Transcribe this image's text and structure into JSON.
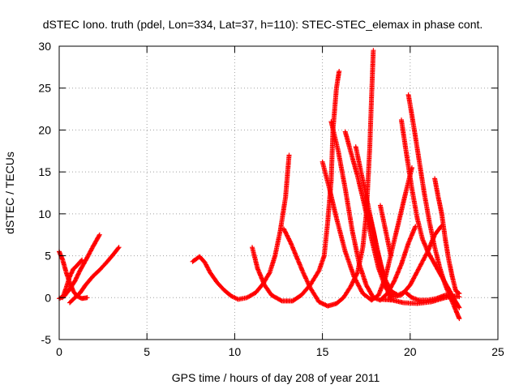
{
  "chart_data": {
    "type": "scatter",
    "title": "dSTEC Iono. truth (pdel, Lon=334, Lat=37, h=110): STEC-STEC_elemax in phase cont.",
    "xlabel": "GPS time / hours of day 208 of year 2011",
    "ylabel": "dSTEC  / TECUs",
    "xlim": [
      0,
      25
    ],
    "ylim": [
      -5,
      30
    ],
    "xticks": [
      0,
      5,
      10,
      15,
      20,
      25
    ],
    "yticks": [
      -5,
      0,
      5,
      10,
      15,
      20,
      25,
      30
    ],
    "xtick_labels": [
      "0",
      "5",
      "10",
      "15",
      "20",
      "25"
    ],
    "ytick_labels": [
      "-5",
      "0",
      "5",
      "10",
      "15",
      "20",
      "25",
      "30"
    ],
    "grid": true,
    "marker": "plus",
    "color": "#ff0000",
    "series": [
      {
        "points": [
          [
            0.0,
            5.5
          ],
          [
            0.2,
            4.5
          ],
          [
            0.4,
            3.0
          ],
          [
            0.6,
            1.8
          ],
          [
            0.8,
            0.8
          ],
          [
            1.0,
            0.2
          ],
          [
            1.3,
            -0.1
          ],
          [
            1.6,
            0.0
          ]
        ]
      },
      {
        "points": [
          [
            0.0,
            -0.1
          ],
          [
            0.3,
            0.2
          ],
          [
            0.6,
            1.0
          ],
          [
            0.9,
            2.0
          ],
          [
            1.2,
            3.3
          ],
          [
            1.6,
            4.8
          ],
          [
            1.9,
            6.0
          ],
          [
            2.3,
            7.5
          ]
        ]
      },
      {
        "points": [
          [
            0.2,
            0.0
          ],
          [
            0.4,
            1.2
          ],
          [
            0.6,
            2.5
          ],
          [
            0.8,
            3.4
          ],
          [
            1.0,
            3.8
          ],
          [
            1.3,
            4.5
          ]
        ]
      },
      {
        "points": [
          [
            0.6,
            -0.6
          ],
          [
            0.9,
            0.0
          ],
          [
            1.2,
            0.6
          ],
          [
            1.5,
            1.5
          ],
          [
            1.9,
            2.5
          ],
          [
            2.3,
            3.3
          ],
          [
            2.7,
            4.2
          ],
          [
            3.1,
            5.2
          ],
          [
            3.4,
            6.0
          ]
        ]
      },
      {
        "points": [
          [
            7.6,
            4.3
          ],
          [
            8.0,
            4.9
          ],
          [
            8.3,
            4.2
          ],
          [
            8.6,
            3.0
          ],
          [
            9.0,
            1.8
          ],
          [
            9.4,
            0.9
          ],
          [
            9.8,
            0.2
          ],
          [
            10.2,
            -0.2
          ],
          [
            10.7,
            0.0
          ],
          [
            11.2,
            0.6
          ],
          [
            11.6,
            1.6
          ],
          [
            12.0,
            3.0
          ],
          [
            12.3,
            5.0
          ],
          [
            12.6,
            8.0
          ],
          [
            12.9,
            12.0
          ],
          [
            13.1,
            17.0
          ]
        ]
      },
      {
        "points": [
          [
            11.0,
            6.0
          ],
          [
            11.3,
            3.5
          ],
          [
            11.7,
            1.5
          ],
          [
            12.1,
            0.3
          ],
          [
            12.7,
            -0.4
          ],
          [
            13.3,
            -0.4
          ],
          [
            13.8,
            0.3
          ],
          [
            14.3,
            1.5
          ],
          [
            14.8,
            3.2
          ],
          [
            15.1,
            5.0
          ],
          [
            15.3,
            9.0
          ],
          [
            15.5,
            14.0
          ],
          [
            15.6,
            20.0
          ],
          [
            15.8,
            25.0
          ],
          [
            15.95,
            27.0
          ]
        ]
      },
      {
        "points": [
          [
            12.8,
            8.2
          ],
          [
            13.2,
            6.5
          ],
          [
            13.6,
            4.5
          ],
          [
            13.9,
            3.0
          ],
          [
            14.3,
            1.2
          ],
          [
            14.8,
            -0.5
          ],
          [
            15.3,
            -1.0
          ],
          [
            15.8,
            -0.7
          ],
          [
            16.2,
            0.0
          ],
          [
            16.6,
            1.3
          ],
          [
            17.0,
            3.0
          ],
          [
            17.3,
            6.0
          ],
          [
            17.5,
            10.0
          ],
          [
            17.7,
            18.0
          ],
          [
            17.8,
            24.0
          ],
          [
            17.9,
            29.5
          ]
        ]
      },
      {
        "points": [
          [
            15.0,
            16.2
          ],
          [
            15.4,
            13.0
          ],
          [
            15.8,
            9.5
          ],
          [
            16.3,
            5.5
          ],
          [
            16.8,
            2.5
          ],
          [
            17.3,
            0.5
          ],
          [
            17.8,
            -0.3
          ],
          [
            18.2,
            0.3
          ],
          [
            18.6,
            2.5
          ],
          [
            19.0,
            6.0
          ],
          [
            19.4,
            9.5
          ],
          [
            19.8,
            13.0
          ],
          [
            20.1,
            15.5
          ]
        ]
      },
      {
        "points": [
          [
            15.5,
            21.0
          ],
          [
            15.9,
            17.5
          ],
          [
            16.3,
            13.0
          ],
          [
            16.7,
            8.0
          ],
          [
            17.1,
            4.0
          ],
          [
            17.5,
            1.5
          ],
          [
            17.9,
            0.0
          ],
          [
            18.3,
            -0.3
          ],
          [
            18.7,
            0.5
          ],
          [
            19.1,
            2.0
          ],
          [
            19.5,
            4.0
          ],
          [
            19.9,
            6.5
          ],
          [
            20.3,
            8.5
          ]
        ]
      },
      {
        "points": [
          [
            16.3,
            19.8
          ],
          [
            16.6,
            17.5
          ],
          [
            17.0,
            14.5
          ],
          [
            17.4,
            11.0
          ],
          [
            17.8,
            7.0
          ],
          [
            18.2,
            3.5
          ],
          [
            18.6,
            1.2
          ],
          [
            19.0,
            0.1
          ],
          [
            19.5,
            0.3
          ],
          [
            20.0,
            1.5
          ],
          [
            20.5,
            3.5
          ],
          [
            21.0,
            5.5
          ],
          [
            21.4,
            7.5
          ],
          [
            21.8,
            8.6
          ]
        ]
      },
      {
        "points": [
          [
            16.9,
            18.0
          ],
          [
            17.3,
            14.0
          ],
          [
            17.7,
            10.0
          ],
          [
            18.1,
            6.0
          ],
          [
            18.5,
            2.5
          ],
          [
            18.9,
            0.8
          ],
          [
            19.3,
            0.3
          ],
          [
            19.7,
            0.7
          ],
          [
            20.1,
            0.0
          ],
          [
            20.5,
            -0.3
          ],
          [
            21.0,
            -0.3
          ],
          [
            21.5,
            -0.1
          ],
          [
            22.0,
            0.3
          ],
          [
            22.4,
            0.0
          ],
          [
            22.7,
            -1.0
          ]
        ]
      },
      {
        "points": [
          [
            17.6,
            10.3
          ],
          [
            17.9,
            8.0
          ],
          [
            18.1,
            6.0
          ],
          [
            18.3,
            4.0
          ],
          [
            18.6,
            1.5
          ],
          [
            18.9,
            -0.2
          ]
        ]
      },
      {
        "points": [
          [
            18.3,
            11.0
          ],
          [
            18.6,
            8.0
          ],
          [
            18.9,
            5.0
          ]
        ]
      },
      {
        "points": [
          [
            19.5,
            21.2
          ],
          [
            19.8,
            17.0
          ],
          [
            20.1,
            13.0
          ],
          [
            20.4,
            9.5
          ],
          [
            20.7,
            7.0
          ],
          [
            21.0,
            5.5
          ],
          [
            21.4,
            4.0
          ],
          [
            21.8,
            2.5
          ],
          [
            22.2,
            1.0
          ],
          [
            22.6,
            -0.5
          ],
          [
            22.8,
            -1.2
          ]
        ]
      },
      {
        "points": [
          [
            19.9,
            24.2
          ],
          [
            20.2,
            20.5
          ],
          [
            20.5,
            16.5
          ],
          [
            20.8,
            12.5
          ],
          [
            21.1,
            9.0
          ],
          [
            21.4,
            6.0
          ],
          [
            21.7,
            3.5
          ],
          [
            22.0,
            1.5
          ],
          [
            22.3,
            0.0
          ],
          [
            22.6,
            -1.5
          ],
          [
            22.8,
            -2.5
          ]
        ]
      },
      {
        "points": [
          [
            21.4,
            14.2
          ],
          [
            21.6,
            12.0
          ],
          [
            21.8,
            10.0
          ],
          [
            22.0,
            7.0
          ],
          [
            22.2,
            4.5
          ],
          [
            22.4,
            2.5
          ],
          [
            22.6,
            0.8
          ],
          [
            22.8,
            0.5
          ]
        ]
      },
      {
        "points": [
          [
            18.4,
            -0.2
          ],
          [
            19.0,
            -0.3
          ],
          [
            19.6,
            -0.6
          ],
          [
            20.4,
            -0.7
          ],
          [
            21.2,
            -0.5
          ],
          [
            22.0,
            0.0
          ],
          [
            22.6,
            0.2
          ],
          [
            22.8,
            0.1
          ]
        ]
      }
    ]
  }
}
